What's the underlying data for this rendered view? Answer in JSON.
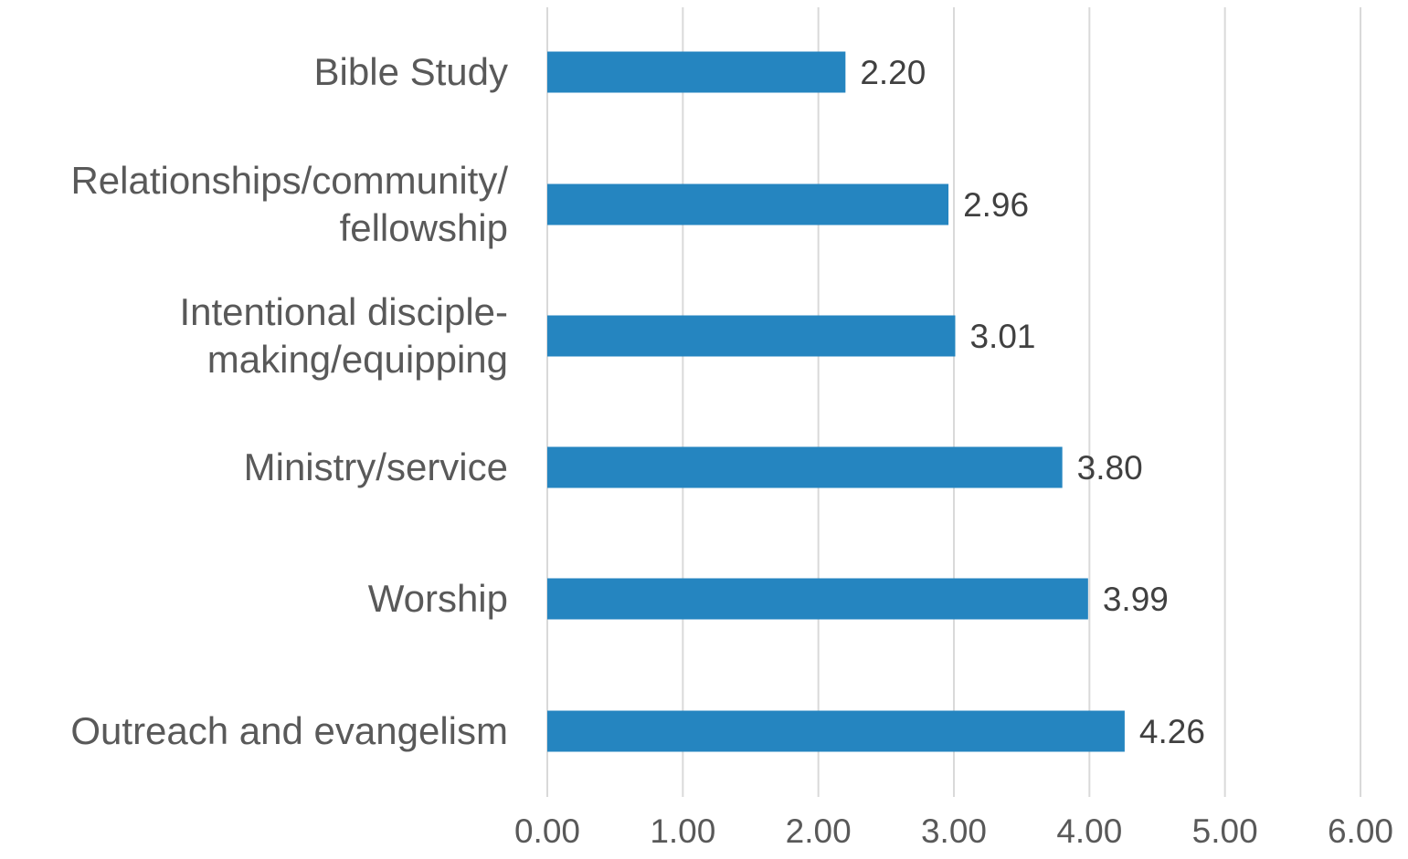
{
  "chart_data": {
    "type": "bar",
    "orientation": "horizontal",
    "categories": [
      [
        "Bible Study"
      ],
      [
        "Relationships/community/",
        "fellowship"
      ],
      [
        "Intentional disciple-",
        "making/equipping"
      ],
      [
        "Ministry/service"
      ],
      [
        "Worship"
      ],
      [
        "Outreach and evangelism"
      ]
    ],
    "values": [
      2.2,
      2.96,
      3.01,
      3.8,
      3.99,
      4.26
    ],
    "data_labels": [
      "2.20",
      "2.96",
      "3.01",
      "3.80",
      "3.99",
      "4.26"
    ],
    "title": "",
    "xlabel": "",
    "ylabel": "",
    "xlim": [
      0,
      6
    ],
    "x_ticks": [
      "0.00",
      "1.00",
      "2.00",
      "3.00",
      "4.00",
      "5.00",
      "6.00"
    ],
    "grid": true,
    "legend": "none",
    "bar_color": "#2585c0"
  }
}
